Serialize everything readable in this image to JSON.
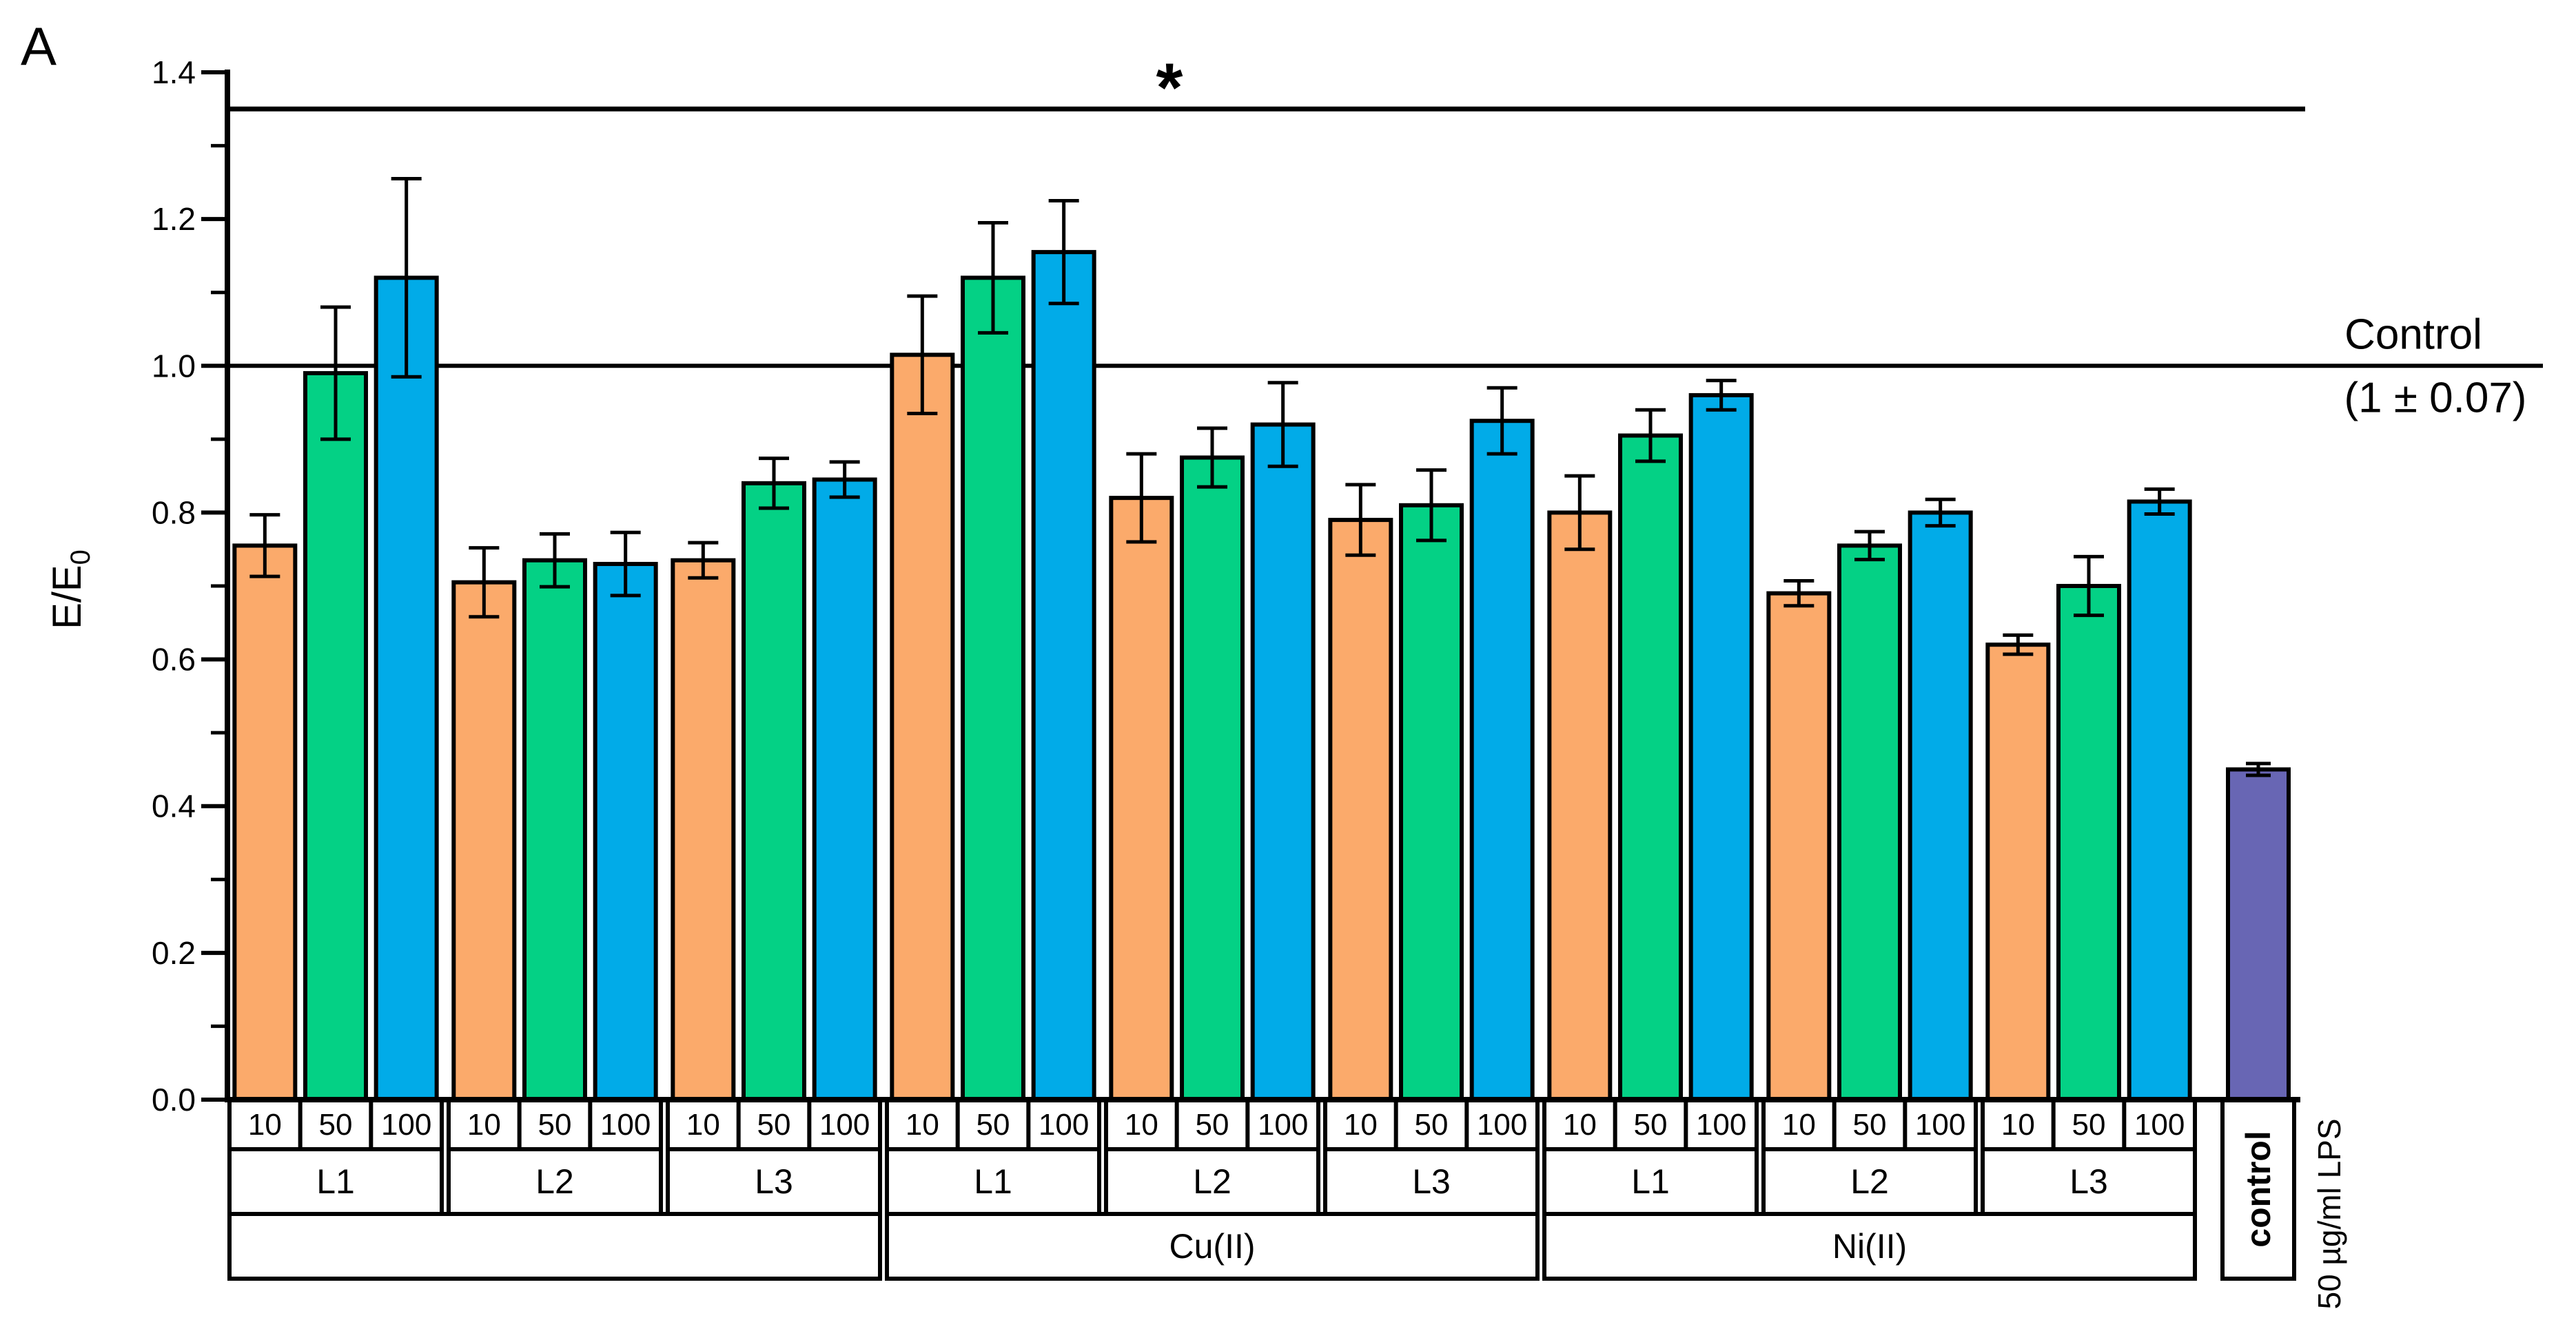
{
  "panel_label": "A",
  "axis": {
    "ylabel_main": "E/E",
    "ylabel_sub": "0",
    "ymin": 0.0,
    "ymax": 1.4,
    "major_tick_step": 0.2,
    "minor_tick_step": 0.1
  },
  "annotations": {
    "significance_star": "*",
    "significance_line_y": 1.35,
    "control_line_y": 1.0,
    "control_label_line1": "Control",
    "control_label_line2": "(1 ± 0.07)"
  },
  "chart_data": {
    "type": "bar",
    "title": "",
    "xlabel": "",
    "ylabel": "E/E0",
    "ylim": [
      0.0,
      1.4
    ],
    "grid": false,
    "concentrations": [
      "10",
      "50",
      "100"
    ],
    "groups": [
      {
        "metal": "",
        "ligand": "L1",
        "values": [
          0.755,
          0.99,
          1.12
        ],
        "errors": [
          0.042,
          0.09,
          0.135
        ]
      },
      {
        "metal": "",
        "ligand": "L2",
        "values": [
          0.705,
          0.735,
          0.73
        ],
        "errors": [
          0.047,
          0.036,
          0.043
        ]
      },
      {
        "metal": "",
        "ligand": "L3",
        "values": [
          0.735,
          0.84,
          0.845
        ],
        "errors": [
          0.024,
          0.034,
          0.024
        ]
      },
      {
        "metal": "Cu(II)",
        "ligand": "L1",
        "values": [
          1.015,
          1.12,
          1.155
        ],
        "errors": [
          0.08,
          0.075,
          0.07
        ]
      },
      {
        "metal": "Cu(II)",
        "ligand": "L2",
        "values": [
          0.82,
          0.875,
          0.92
        ],
        "errors": [
          0.06,
          0.04,
          0.057
        ]
      },
      {
        "metal": "Cu(II)",
        "ligand": "L3",
        "values": [
          0.79,
          0.81,
          0.925
        ],
        "errors": [
          0.048,
          0.048,
          0.045
        ]
      },
      {
        "metal": "Ni(II)",
        "ligand": "L1",
        "values": [
          0.8,
          0.905,
          0.96
        ],
        "errors": [
          0.05,
          0.035,
          0.02
        ]
      },
      {
        "metal": "Ni(II)",
        "ligand": "L2",
        "values": [
          0.69,
          0.755,
          0.8
        ],
        "errors": [
          0.017,
          0.019,
          0.018
        ]
      },
      {
        "metal": "Ni(II)",
        "ligand": "L3",
        "values": [
          0.62,
          0.7,
          0.815
        ],
        "errors": [
          0.013,
          0.04,
          0.017
        ]
      }
    ],
    "metal_spans": [
      {
        "label": "",
        "from_group": 0,
        "to_group": 2
      },
      {
        "label": "Cu(II)",
        "from_group": 3,
        "to_group": 5
      },
      {
        "label": "Ni(II)",
        "from_group": 6,
        "to_group": 8
      }
    ],
    "control": {
      "label": "control",
      "value": 0.45,
      "error": 0.008,
      "side_label": "50 µg/ml LPS"
    },
    "colors": {
      "conc_10": "#FBAA6B",
      "conc_50": "#04D185",
      "conc_100": "#01ABE8",
      "control": "#6866B4",
      "line": "#000000"
    },
    "legend_position": "none"
  }
}
